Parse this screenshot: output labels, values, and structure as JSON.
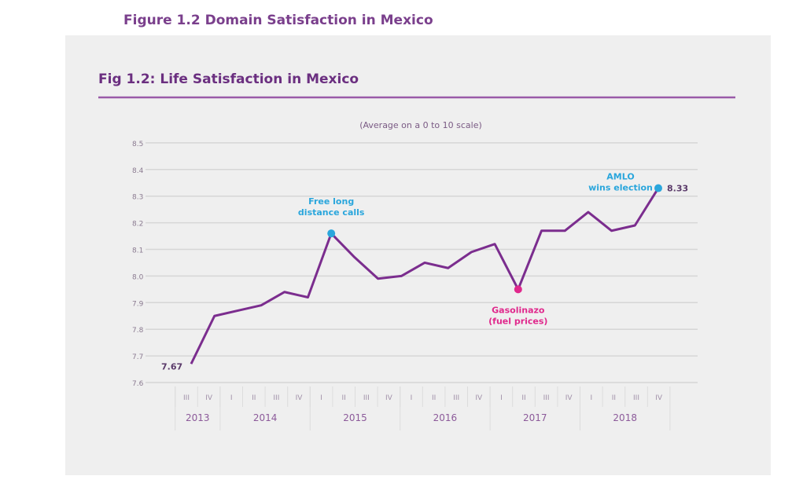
{
  "page_heading": "Figure 1.2 Domain Satisfaction in Mexico",
  "colors": {
    "line": "#7b2d8e",
    "title": "#6b2f80",
    "blue_annotation": "#2aa6dc",
    "pink_annotation": "#e0288c",
    "panel": "#efefef"
  },
  "chart_data": {
    "type": "line",
    "title": "Fig 1.2: Life Satisfaction in Mexico",
    "subtitle": "(Average on a 0 to 10 scale)",
    "ylim": [
      7.6,
      8.5
    ],
    "yticks": [
      "8.5",
      "8.4",
      "8.3",
      "8.2",
      "8.1",
      "8.0",
      "7.9",
      "7.8",
      "7.7",
      "7.6"
    ],
    "grid": true,
    "x_quarters": [
      {
        "year": "2013",
        "quarters": [
          "III",
          "IV"
        ]
      },
      {
        "year": "2014",
        "quarters": [
          "I",
          "II",
          "III",
          "IV"
        ]
      },
      {
        "year": "2015",
        "quarters": [
          "I",
          "II",
          "III",
          "IV"
        ]
      },
      {
        "year": "2016",
        "quarters": [
          "I",
          "II",
          "III",
          "IV"
        ]
      },
      {
        "year": "2017",
        "quarters": [
          "I",
          "II",
          "III",
          "IV"
        ]
      },
      {
        "year": "2018",
        "quarters": [
          "I",
          "II",
          "III",
          "IV"
        ]
      }
    ],
    "x": [
      "2013 III",
      "2013 IV",
      "2014 I",
      "2014 II",
      "2014 III",
      "2014 IV",
      "2015 I",
      "2015 II",
      "2015 III",
      "2015 IV",
      "2016 I",
      "2016 II",
      "2016 III",
      "2016 IV",
      "2017 I",
      "2017 II",
      "2017 III",
      "2017 IV",
      "2018 I",
      "2018 II",
      "2018 III"
    ],
    "values": [
      7.67,
      7.85,
      7.87,
      7.89,
      7.94,
      7.92,
      8.16,
      8.07,
      7.99,
      8.0,
      8.05,
      8.03,
      8.09,
      8.12,
      7.95,
      8.17,
      8.17,
      8.24,
      8.17,
      8.19,
      8.33
    ],
    "data_labels": {
      "first": "7.67",
      "last": "8.33"
    },
    "annotations": [
      {
        "index": 6,
        "lines": [
          "Free long",
          "distance calls"
        ],
        "color": "blue"
      },
      {
        "index": 14,
        "lines": [
          "Gasolinazo",
          "(fuel prices)"
        ],
        "color": "pink"
      },
      {
        "index": 20,
        "lines": [
          "AMLO",
          "wins election"
        ],
        "color": "blue"
      }
    ]
  }
}
